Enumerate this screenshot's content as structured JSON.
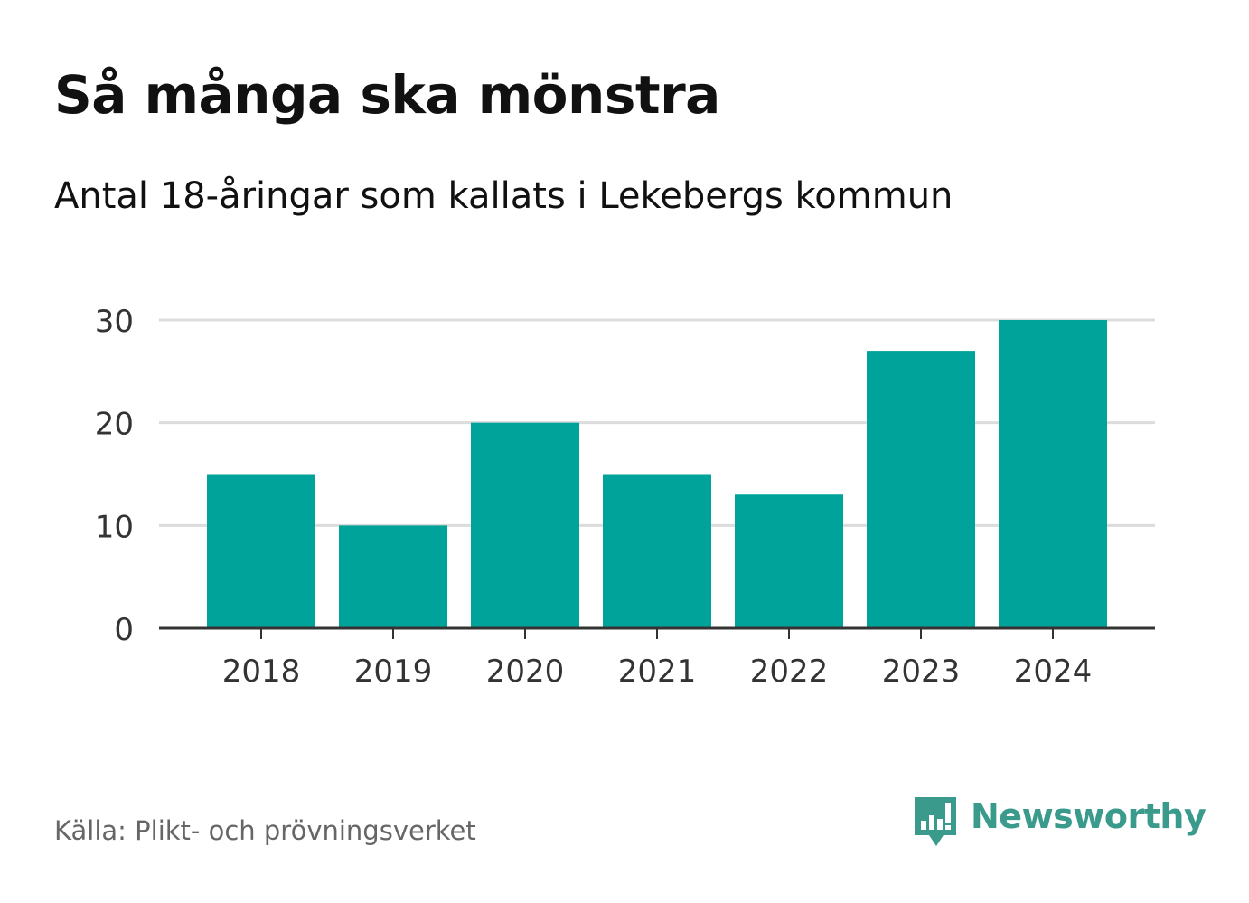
{
  "title": "Så många ska mönstra",
  "subtitle": "Antal 18-åringar som kallats i Lekebergs kommun",
  "source": "Källa: Plikt- och prövningsverket",
  "brand": {
    "name": "Newsworthy",
    "logo_icon": "newsworthy-bar-chart-speech-bubble-icon",
    "color": "#3a9a8c"
  },
  "colors": {
    "bar": "#00a39a",
    "grid": "#dcdcdc",
    "axis": "#333333",
    "tick_text": "#333333"
  },
  "chart_data": {
    "type": "bar",
    "title": "Så många ska mönstra",
    "subtitle": "Antal 18-åringar som kallats i Lekebergs kommun",
    "xlabel": "",
    "ylabel": "",
    "categories": [
      "2018",
      "2019",
      "2020",
      "2021",
      "2022",
      "2023",
      "2024"
    ],
    "values": [
      15,
      10,
      20,
      15,
      13,
      27,
      30
    ],
    "ylim": [
      0,
      30
    ],
    "yticks": [
      0,
      10,
      20,
      30
    ],
    "grid": true,
    "legend": "none"
  }
}
